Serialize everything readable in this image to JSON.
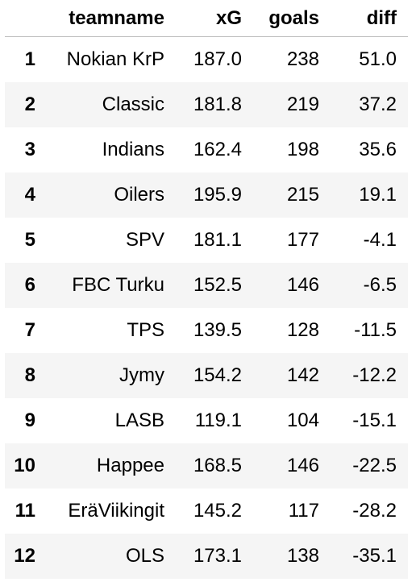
{
  "table": {
    "columns": [
      "",
      "teamname",
      "xG",
      "goals",
      "diff"
    ],
    "rows": [
      {
        "index": "1",
        "teamname": "Nokian KrP",
        "xG": "187.0",
        "goals": "238",
        "diff": "51.0"
      },
      {
        "index": "2",
        "teamname": "Classic",
        "xG": "181.8",
        "goals": "219",
        "diff": "37.2"
      },
      {
        "index": "3",
        "teamname": "Indians",
        "xG": "162.4",
        "goals": "198",
        "diff": "35.6"
      },
      {
        "index": "4",
        "teamname": "Oilers",
        "xG": "195.9",
        "goals": "215",
        "diff": "19.1"
      },
      {
        "index": "5",
        "teamname": "SPV",
        "xG": "181.1",
        "goals": "177",
        "diff": "-4.1"
      },
      {
        "index": "6",
        "teamname": "FBC Turku",
        "xG": "152.5",
        "goals": "146",
        "diff": "-6.5"
      },
      {
        "index": "7",
        "teamname": "TPS",
        "xG": "139.5",
        "goals": "128",
        "diff": "-11.5"
      },
      {
        "index": "8",
        "teamname": "Jymy",
        "xG": "154.2",
        "goals": "142",
        "diff": "-12.2"
      },
      {
        "index": "9",
        "teamname": "LASB",
        "xG": "119.1",
        "goals": "104",
        "diff": "-15.1"
      },
      {
        "index": "10",
        "teamname": "Happee",
        "xG": "168.5",
        "goals": "146",
        "diff": "-22.5"
      },
      {
        "index": "11",
        "teamname": "EräViikingit",
        "xG": "145.2",
        "goals": "117",
        "diff": "-28.2"
      },
      {
        "index": "12",
        "teamname": "OLS",
        "xG": "173.1",
        "goals": "138",
        "diff": "-35.1"
      }
    ]
  }
}
